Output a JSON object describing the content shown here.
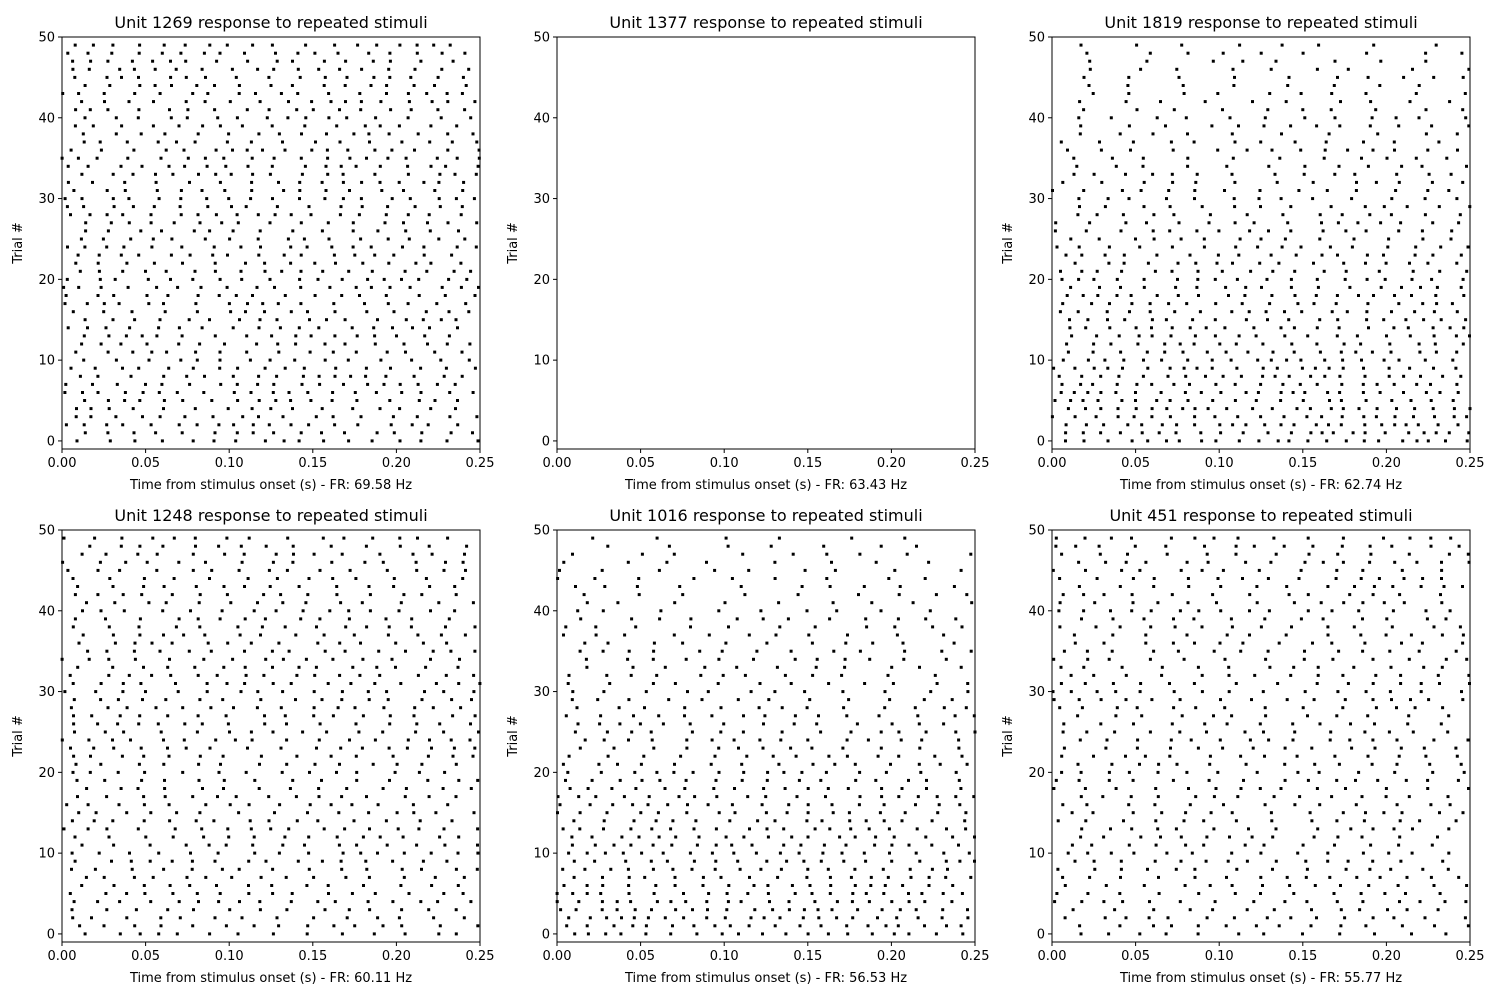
{
  "chart_data": [
    {
      "type": "scatter",
      "title": "Unit 1269 response to repeated stimuli",
      "xlabel": "Time from stimulus onset (s) - FR: 69.58 Hz",
      "ylabel": "Trial #",
      "xlim": [
        0,
        0.25
      ],
      "ylim": [
        -1,
        50
      ],
      "xticks": [
        "0.00",
        "0.05",
        "0.10",
        "0.15",
        "0.20",
        "0.25"
      ],
      "yticks": [
        "0",
        "10",
        "20",
        "30",
        "40",
        "50"
      ],
      "trials": 50,
      "points_visible": true,
      "rate_hz": 69.58,
      "pattern": "uniform"
    },
    {
      "type": "scatter",
      "title": "Unit 1377 response to repeated stimuli",
      "xlabel": "Time from stimulus onset (s) - FR: 63.43 Hz",
      "ylabel": "Trial #",
      "xlim": [
        0,
        0.25
      ],
      "ylim": [
        -1,
        50
      ],
      "xticks": [
        "0.00",
        "0.05",
        "0.10",
        "0.15",
        "0.20",
        "0.25"
      ],
      "yticks": [
        "0",
        "10",
        "20",
        "30",
        "40",
        "50"
      ],
      "trials": 50,
      "points_visible": false,
      "rate_hz": 63.43,
      "pattern": "none"
    },
    {
      "type": "scatter",
      "title": "Unit 1819 response to repeated stimuli",
      "xlabel": "Time from stimulus onset (s) - FR: 62.74 Hz",
      "ylabel": "Trial #",
      "xlim": [
        0,
        0.25
      ],
      "ylim": [
        -1,
        50
      ],
      "xticks": [
        "0.00",
        "0.05",
        "0.10",
        "0.15",
        "0.20",
        "0.25"
      ],
      "yticks": [
        "0",
        "10",
        "20",
        "30",
        "40",
        "50"
      ],
      "trials": 50,
      "points_visible": true,
      "rate_hz": 62.74,
      "pattern": "dense-low-trials"
    },
    {
      "type": "scatter",
      "title": "Unit 1248 response to repeated stimuli",
      "xlabel": "Time from stimulus onset (s) - FR: 60.11 Hz",
      "ylabel": "Trial #",
      "xlim": [
        0,
        0.25
      ],
      "ylim": [
        -1,
        50
      ],
      "xticks": [
        "0.00",
        "0.05",
        "0.10",
        "0.15",
        "0.20",
        "0.25"
      ],
      "yticks": [
        "0",
        "10",
        "20",
        "30",
        "40",
        "50"
      ],
      "trials": 50,
      "points_visible": true,
      "rate_hz": 60.11,
      "pattern": "diagonal-band"
    },
    {
      "type": "scatter",
      "title": "Unit 1016 response to repeated stimuli",
      "xlabel": "Time from stimulus onset (s) - FR: 56.53 Hz",
      "ylabel": "Trial #",
      "xlim": [
        0,
        0.25
      ],
      "ylim": [
        -1,
        50
      ],
      "xticks": [
        "0.00",
        "0.05",
        "0.10",
        "0.15",
        "0.20",
        "0.25"
      ],
      "yticks": [
        "0",
        "10",
        "20",
        "30",
        "40",
        "50"
      ],
      "trials": 50,
      "points_visible": true,
      "rate_hz": 56.53,
      "pattern": "dense-low-trials"
    },
    {
      "type": "scatter",
      "title": "Unit 451 response to repeated stimuli",
      "xlabel": "Time from stimulus onset (s) - FR: 55.77 Hz",
      "ylabel": "Trial #",
      "xlim": [
        0,
        0.25
      ],
      "ylim": [
        -1,
        50
      ],
      "xticks": [
        "0.00",
        "0.05",
        "0.10",
        "0.15",
        "0.20",
        "0.25"
      ],
      "yticks": [
        "0",
        "10",
        "20",
        "30",
        "40",
        "50"
      ],
      "trials": 50,
      "points_visible": true,
      "rate_hz": 55.77,
      "pattern": "diagonal-band"
    }
  ]
}
